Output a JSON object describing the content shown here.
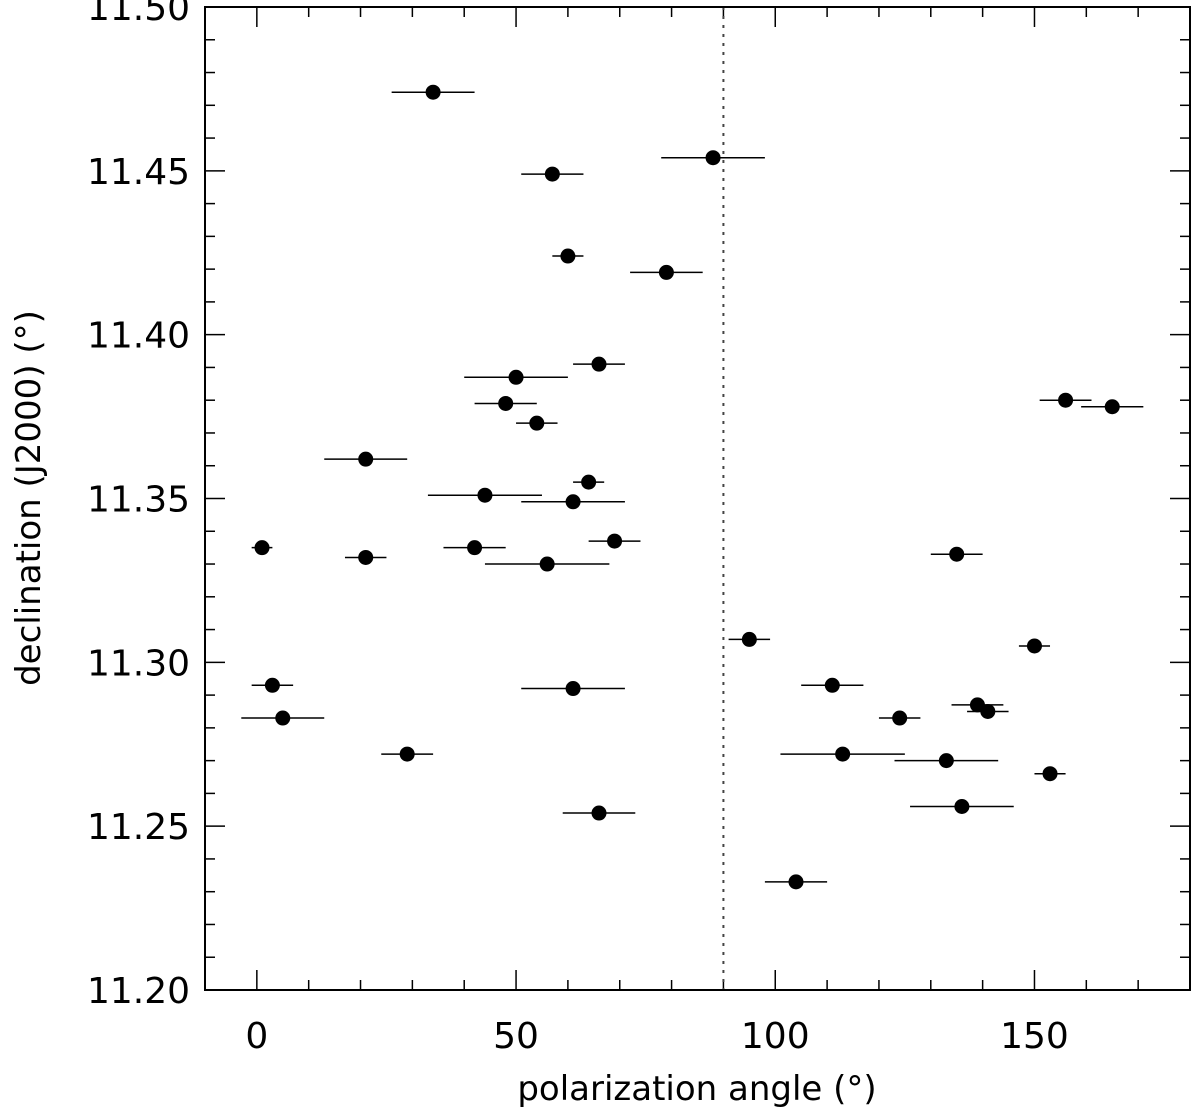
{
  "chart_data": {
    "type": "scatter",
    "title": "",
    "xlabel": "polarization angle (°)",
    "ylabel": "declination (J2000) (°)",
    "xlim": [
      -10,
      180
    ],
    "ylim": [
      11.2,
      11.5
    ],
    "x_ticks": [
      0,
      50,
      100,
      150
    ],
    "x_tick_labels": [
      "0",
      "50",
      "100",
      "150"
    ],
    "y_ticks": [
      11.2,
      11.25,
      11.3,
      11.35,
      11.4,
      11.45,
      11.5
    ],
    "y_tick_labels": [
      "11.20",
      "11.25",
      "11.30",
      "11.35",
      "11.40",
      "11.45",
      "11.50"
    ],
    "x_minor_step": 10,
    "y_minor_step": 0.01,
    "reference_line": {
      "x": 90,
      "style": "dotted"
    },
    "grid": false,
    "legend": "none",
    "points": [
      {
        "x": 34,
        "y": 11.474,
        "xerr": 8
      },
      {
        "x": 88,
        "y": 11.454,
        "xerr": 10
      },
      {
        "x": 57,
        "y": 11.449,
        "xerr": 6
      },
      {
        "x": 60,
        "y": 11.424,
        "xerr": 3
      },
      {
        "x": 79,
        "y": 11.419,
        "xerr": 7
      },
      {
        "x": 66,
        "y": 11.391,
        "xerr": 5
      },
      {
        "x": 50,
        "y": 11.387,
        "xerr": 10
      },
      {
        "x": 156,
        "y": 11.38,
        "xerr": 5
      },
      {
        "x": 48,
        "y": 11.379,
        "xerr": 6
      },
      {
        "x": 165,
        "y": 11.378,
        "xerr": 6
      },
      {
        "x": 54,
        "y": 11.373,
        "xerr": 4
      },
      {
        "x": 21,
        "y": 11.362,
        "xerr": 8
      },
      {
        "x": 64,
        "y": 11.355,
        "xerr": 3
      },
      {
        "x": 44,
        "y": 11.351,
        "xerr": 11
      },
      {
        "x": 61,
        "y": 11.349,
        "xerr": 10
      },
      {
        "x": 69,
        "y": 11.337,
        "xerr": 5
      },
      {
        "x": 1,
        "y": 11.335,
        "xerr": 2
      },
      {
        "x": 42,
        "y": 11.335,
        "xerr": 6
      },
      {
        "x": 135,
        "y": 11.333,
        "xerr": 5
      },
      {
        "x": 21,
        "y": 11.332,
        "xerr": 4
      },
      {
        "x": 56,
        "y": 11.33,
        "xerr": 12
      },
      {
        "x": 95,
        "y": 11.307,
        "xerr": 4
      },
      {
        "x": 150,
        "y": 11.305,
        "xerr": 3
      },
      {
        "x": 3,
        "y": 11.293,
        "xerr": 4
      },
      {
        "x": 111,
        "y": 11.293,
        "xerr": 6
      },
      {
        "x": 61,
        "y": 11.292,
        "xerr": 10
      },
      {
        "x": 139,
        "y": 11.287,
        "xerr": 5
      },
      {
        "x": 141,
        "y": 11.285,
        "xerr": 4
      },
      {
        "x": 5,
        "y": 11.283,
        "xerr": 8
      },
      {
        "x": 124,
        "y": 11.283,
        "xerr": 4
      },
      {
        "x": 29,
        "y": 11.272,
        "xerr": 5
      },
      {
        "x": 113,
        "y": 11.272,
        "xerr": 12
      },
      {
        "x": 133,
        "y": 11.27,
        "xerr": 10
      },
      {
        "x": 153,
        "y": 11.266,
        "xerr": 3
      },
      {
        "x": 136,
        "y": 11.256,
        "xerr": 10
      },
      {
        "x": 66,
        "y": 11.254,
        "xerr": 7
      },
      {
        "x": 104,
        "y": 11.233,
        "xerr": 6
      }
    ]
  }
}
